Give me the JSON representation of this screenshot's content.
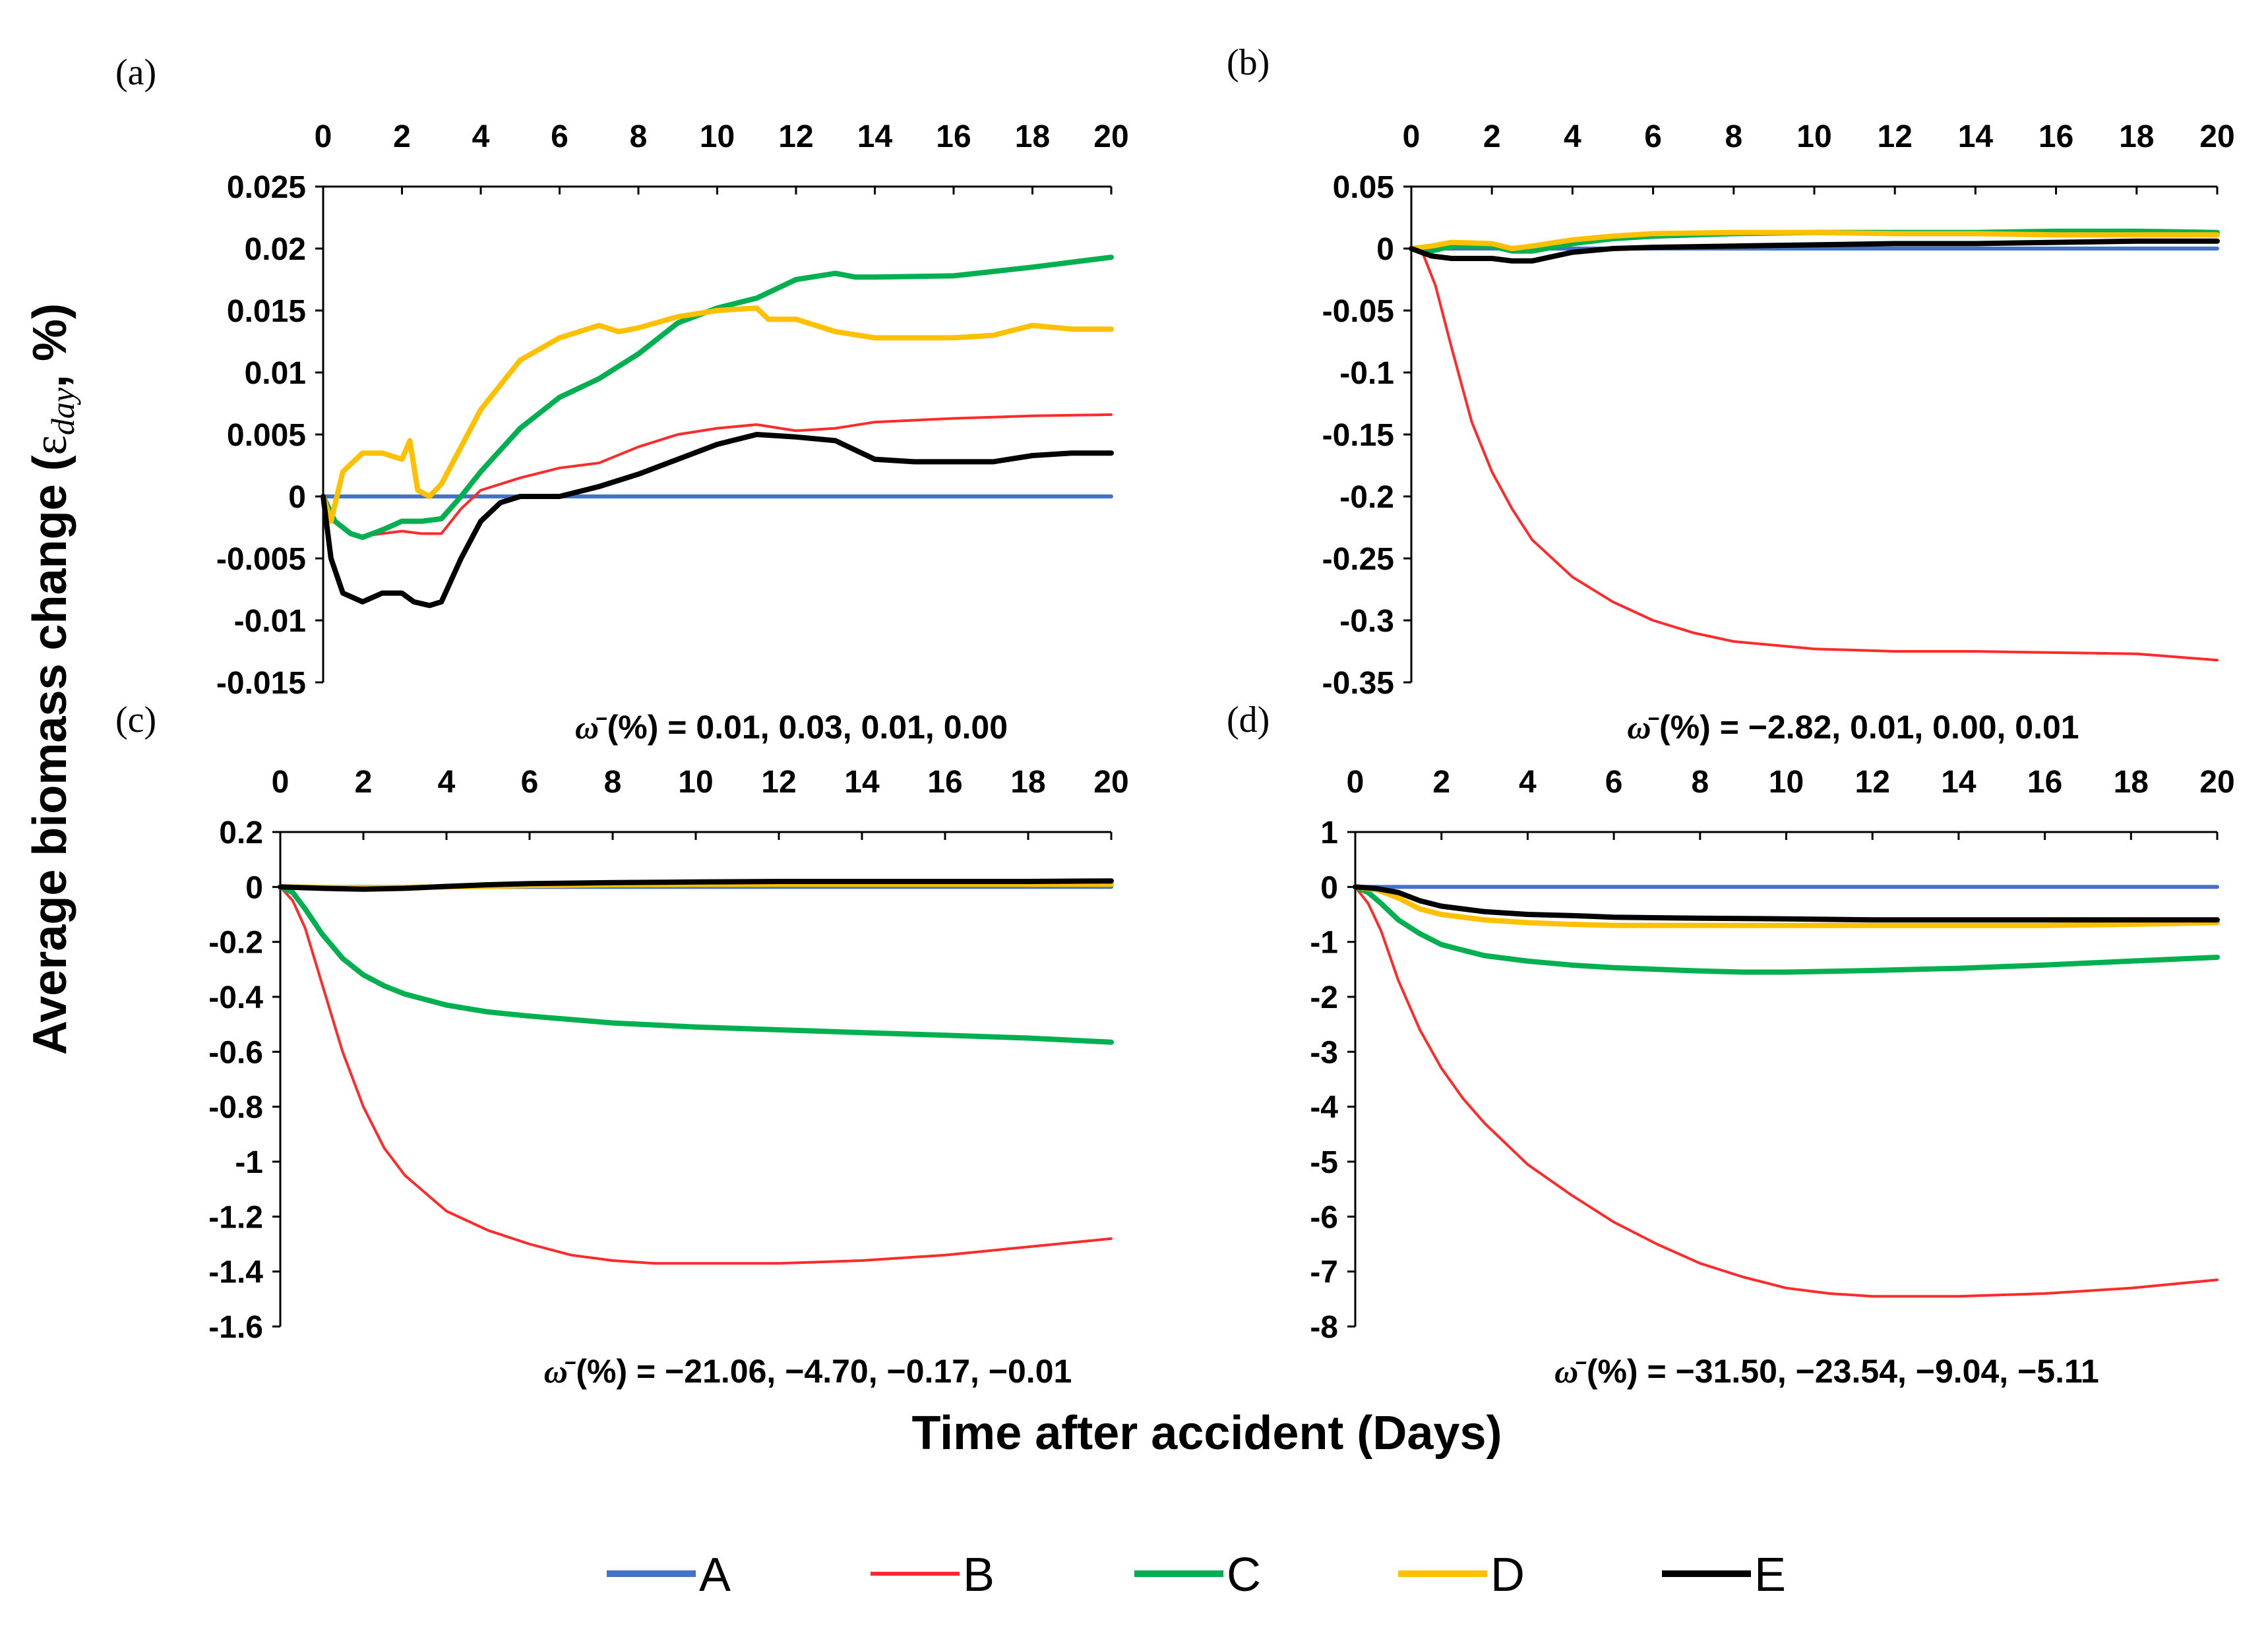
{
  "figure": {
    "ylabel_text": "Average biomass change (",
    "ylabel_symbol": "ε",
    "ylabel_sub": "day",
    "ylabel_suffix": ", %)",
    "xlabel": "Time after accident (Days)"
  },
  "legend": [
    {
      "name": "A",
      "color": "#4472c4"
    },
    {
      "name": "B",
      "color": "#ff2a2a"
    },
    {
      "name": "C",
      "color": "#00b050"
    },
    {
      "name": "D",
      "color": "#ffc000"
    },
    {
      "name": "E",
      "color": "#000000"
    }
  ],
  "chart_data": [
    {
      "type": "line",
      "panel_label": "(a)",
      "xlim": [
        0,
        20
      ],
      "xticks": [
        0,
        2,
        4,
        6,
        8,
        10,
        12,
        14,
        16,
        18,
        20
      ],
      "ylim": [
        -0.015,
        0.025
      ],
      "yticks": [
        -0.015,
        -0.01,
        -0.005,
        0,
        0.005,
        0.01,
        0.015,
        0.02,
        0.025
      ],
      "ytick_labels": [
        "-0.015",
        "-0.01",
        "-0.005",
        "0",
        "0.005",
        "0.01",
        "0.015",
        "0.02",
        "0.025"
      ],
      "annotation": "(%) = 0.01, 0.03, 0.01, 0.00",
      "series": [
        {
          "name": "A",
          "x": [
            0,
            20
          ],
          "y": [
            0,
            0
          ]
        },
        {
          "name": "B",
          "x": [
            0,
            0.3,
            0.7,
            1.0,
            1.5,
            2.0,
            2.5,
            3.0,
            3.5,
            4.0,
            5.0,
            6.0,
            7.0,
            8.0,
            9.0,
            10.0,
            11.0,
            12.0,
            13.0,
            14.0,
            16.0,
            18.0,
            20.0
          ],
          "y": [
            0,
            -0.002,
            -0.003,
            -0.0032,
            -0.003,
            -0.0028,
            -0.003,
            -0.003,
            -0.001,
            0.0005,
            0.0015,
            0.0023,
            0.0027,
            0.004,
            0.005,
            0.0055,
            0.0058,
            0.0053,
            0.0055,
            0.006,
            0.0063,
            0.0065,
            0.0066
          ]
        },
        {
          "name": "C",
          "x": [
            0,
            0.3,
            0.7,
            1.0,
            1.5,
            2.0,
            2.5,
            3.0,
            3.5,
            4.0,
            5.0,
            6.0,
            7.0,
            8.0,
            9.0,
            10.0,
            11.0,
            12.0,
            13.0,
            13.5,
            14.0,
            16.0,
            18.0,
            20.0
          ],
          "y": [
            0,
            -0.002,
            -0.003,
            -0.0033,
            -0.0027,
            -0.002,
            -0.002,
            -0.0018,
            0,
            0.002,
            0.0055,
            0.008,
            0.0095,
            0.0115,
            0.014,
            0.0152,
            0.016,
            0.0175,
            0.018,
            0.0177,
            0.0177,
            0.0178,
            0.0185,
            0.0193
          ]
        },
        {
          "name": "D",
          "x": [
            0,
            0.2,
            0.5,
            1.0,
            1.5,
            2.0,
            2.2,
            2.4,
            2.7,
            3.0,
            4.0,
            5.0,
            6.0,
            7.0,
            7.5,
            8.0,
            9.0,
            10.0,
            11.0,
            11.3,
            12.0,
            13.0,
            14.0,
            15.0,
            16.0,
            17.0,
            18.0,
            19.0,
            20.0
          ],
          "y": [
            0,
            -0.002,
            0.002,
            0.0035,
            0.0035,
            0.003,
            0.0045,
            0.0005,
            0,
            0.001,
            0.007,
            0.011,
            0.0128,
            0.0138,
            0.0133,
            0.0136,
            0.0145,
            0.015,
            0.0152,
            0.0143,
            0.0143,
            0.0133,
            0.0128,
            0.0128,
            0.0128,
            0.013,
            0.0138,
            0.0135,
            0.0135
          ]
        },
        {
          "name": "E",
          "x": [
            0,
            0.2,
            0.5,
            1.0,
            1.5,
            2.0,
            2.3,
            2.7,
            3.0,
            3.5,
            4.0,
            4.5,
            5.0,
            6.0,
            7.0,
            8.0,
            9.0,
            10.0,
            11.0,
            12.0,
            13.0,
            14.0,
            15.0,
            16.0,
            17.0,
            18.0,
            19.0,
            20.0
          ],
          "y": [
            0,
            -0.005,
            -0.0078,
            -0.0085,
            -0.0078,
            -0.0078,
            -0.0085,
            -0.0088,
            -0.0085,
            -0.005,
            -0.002,
            -0.0005,
            0,
            0,
            0.0008,
            0.0018,
            0.003,
            0.0042,
            0.005,
            0.0048,
            0.0045,
            0.003,
            0.0028,
            0.0028,
            0.0028,
            0.0033,
            0.0035,
            0.0035
          ]
        }
      ]
    },
    {
      "type": "line",
      "panel_label": "(b)",
      "xlim": [
        0,
        20
      ],
      "xticks": [
        0,
        2,
        4,
        6,
        8,
        10,
        12,
        14,
        16,
        18,
        20
      ],
      "ylim": [
        -0.35,
        0.05
      ],
      "yticks": [
        -0.35,
        -0.3,
        -0.25,
        -0.2,
        -0.15,
        -0.1,
        -0.05,
        0,
        0.05
      ],
      "ytick_labels": [
        "-0.35",
        "-0.3",
        "-0.25",
        "-0.2",
        "-0.15",
        "-0.1",
        "-0.05",
        "0",
        "0.05"
      ],
      "annotation": "(%) = −2.82, 0.01, 0.00, 0.01",
      "series": [
        {
          "name": "A",
          "x": [
            0,
            20
          ],
          "y": [
            0,
            0
          ]
        },
        {
          "name": "B",
          "x": [
            0,
            0.3,
            0.6,
            1.0,
            1.5,
            2.0,
            2.5,
            3.0,
            4.0,
            5.0,
            6.0,
            7.0,
            8.0,
            10.0,
            12.0,
            14.0,
            16.0,
            18.0,
            20.0
          ],
          "y": [
            0,
            -0.005,
            -0.03,
            -0.08,
            -0.14,
            -0.18,
            -0.21,
            -0.235,
            -0.265,
            -0.285,
            -0.3,
            -0.31,
            -0.317,
            -0.323,
            -0.325,
            -0.325,
            -0.326,
            -0.327,
            -0.332
          ]
        },
        {
          "name": "C",
          "x": [
            0,
            0.5,
            1.0,
            2.0,
            2.5,
            3.0,
            4.0,
            5.0,
            6.0,
            8.0,
            10.0,
            12.0,
            14.0,
            16.0,
            18.0,
            20.0
          ],
          "y": [
            0,
            -0.002,
            0.002,
            0.002,
            -0.002,
            -0.002,
            0.004,
            0.008,
            0.01,
            0.012,
            0.013,
            0.013,
            0.013,
            0.014,
            0.014,
            0.013
          ]
        },
        {
          "name": "D",
          "x": [
            0,
            0.5,
            1.0,
            2.0,
            2.5,
            3.0,
            4.0,
            5.0,
            6.0,
            8.0,
            10.0,
            12.0,
            14.0,
            16.0,
            18.0,
            20.0
          ],
          "y": [
            0,
            0.002,
            0.005,
            0.004,
            0,
            0.002,
            0.007,
            0.01,
            0.012,
            0.013,
            0.013,
            0.012,
            0.012,
            0.011,
            0.011,
            0.011
          ]
        },
        {
          "name": "E",
          "x": [
            0,
            0.5,
            1.0,
            2.0,
            2.5,
            3.0,
            4.0,
            5.0,
            6.0,
            8.0,
            10.0,
            12.0,
            14.0,
            16.0,
            18.0,
            20.0
          ],
          "y": [
            0,
            -0.006,
            -0.008,
            -0.008,
            -0.01,
            -0.01,
            -0.003,
            0,
            0.001,
            0.002,
            0.003,
            0.004,
            0.004,
            0.005,
            0.006,
            0.006
          ]
        }
      ]
    },
    {
      "type": "line",
      "panel_label": "(c)",
      "xlim": [
        0,
        20
      ],
      "xticks": [
        0,
        2,
        4,
        6,
        8,
        10,
        12,
        14,
        16,
        18,
        20
      ],
      "ylim": [
        -1.6,
        0.2
      ],
      "yticks": [
        -1.6,
        -1.4,
        -1.2,
        -1.0,
        -0.8,
        -0.6,
        -0.4,
        -0.2,
        0,
        0.2
      ],
      "ytick_labels": [
        "-1.6",
        "-1.4",
        "-1.2",
        "-1",
        "-0.8",
        "-0.6",
        "-0.4",
        "-0.2",
        "0",
        "0.2"
      ],
      "annotation": "(%) = −21.06, −4.70, −0.17, −0.01",
      "series": [
        {
          "name": "A",
          "x": [
            0,
            20
          ],
          "y": [
            0,
            0
          ]
        },
        {
          "name": "B",
          "x": [
            0,
            0.3,
            0.6,
            1.0,
            1.5,
            2.0,
            2.5,
            3.0,
            4.0,
            5.0,
            6.0,
            7.0,
            8.0,
            9.0,
            10.0,
            12.0,
            14.0,
            16.0,
            18.0,
            20.0
          ],
          "y": [
            0,
            -0.05,
            -0.15,
            -0.35,
            -0.6,
            -0.8,
            -0.95,
            -1.05,
            -1.18,
            -1.25,
            -1.3,
            -1.34,
            -1.36,
            -1.37,
            -1.37,
            -1.37,
            -1.36,
            -1.34,
            -1.31,
            -1.28
          ]
        },
        {
          "name": "C",
          "x": [
            0,
            0.3,
            0.6,
            1.0,
            1.5,
            2.0,
            2.5,
            3.0,
            4.0,
            5.0,
            6.0,
            8.0,
            10.0,
            12.0,
            14.0,
            16.0,
            18.0,
            20.0
          ],
          "y": [
            0,
            -0.02,
            -0.08,
            -0.17,
            -0.26,
            -0.32,
            -0.36,
            -0.39,
            -0.43,
            -0.455,
            -0.47,
            -0.495,
            -0.51,
            -0.52,
            -0.53,
            -0.54,
            -0.55,
            -0.565
          ]
        },
        {
          "name": "D",
          "x": [
            0,
            2.0,
            4.0,
            6.0,
            8.0,
            10.0,
            12.0,
            14.0,
            16.0,
            18.0,
            20.0
          ],
          "y": [
            0,
            -0.003,
            0,
            0.005,
            0.008,
            0.009,
            0.01,
            0.01,
            0.01,
            0.01,
            0.01
          ]
        },
        {
          "name": "E",
          "x": [
            0,
            1.0,
            2.0,
            3.0,
            4.0,
            5.0,
            6.0,
            8.0,
            10.0,
            12.0,
            14.0,
            16.0,
            18.0,
            20.0
          ],
          "y": [
            0,
            -0.005,
            -0.008,
            -0.005,
            0.002,
            0.008,
            0.012,
            0.016,
            0.018,
            0.02,
            0.02,
            0.02,
            0.02,
            0.022
          ]
        }
      ]
    },
    {
      "type": "line",
      "panel_label": "(d)",
      "xlim": [
        0,
        20
      ],
      "xticks": [
        0,
        2,
        4,
        6,
        8,
        10,
        12,
        14,
        16,
        18,
        20
      ],
      "ylim": [
        -8,
        1
      ],
      "yticks": [
        -8,
        -7,
        -6,
        -5,
        -4,
        -3,
        -2,
        -1,
        0,
        1
      ],
      "ytick_labels": [
        "-8",
        "-7",
        "-6",
        "-5",
        "-4",
        "-3",
        "-2",
        "-1",
        "0",
        "1"
      ],
      "annotation": "(%) = −31.50, −23.54, −9.04, −5.11",
      "series": [
        {
          "name": "A",
          "x": [
            0,
            20
          ],
          "y": [
            0,
            0
          ]
        },
        {
          "name": "B",
          "x": [
            0,
            0.3,
            0.6,
            1.0,
            1.5,
            2.0,
            2.5,
            3.0,
            4.0,
            5.0,
            6.0,
            7.0,
            8.0,
            9.0,
            10.0,
            11.0,
            12.0,
            13.0,
            14.0,
            16.0,
            18.0,
            20.0
          ],
          "y": [
            0,
            -0.3,
            -0.8,
            -1.7,
            -2.6,
            -3.3,
            -3.85,
            -4.3,
            -5.05,
            -5.6,
            -6.1,
            -6.5,
            -6.85,
            -7.1,
            -7.3,
            -7.4,
            -7.45,
            -7.45,
            -7.45,
            -7.4,
            -7.3,
            -7.15
          ]
        },
        {
          "name": "C",
          "x": [
            0,
            0.3,
            0.6,
            1.0,
            1.5,
            2.0,
            2.5,
            3.0,
            4.0,
            5.0,
            6.0,
            7.0,
            8.0,
            9.0,
            10.0,
            12.0,
            14.0,
            16.0,
            18.0,
            20.0
          ],
          "y": [
            0,
            -0.1,
            -0.3,
            -0.6,
            -0.85,
            -1.05,
            -1.15,
            -1.25,
            -1.35,
            -1.42,
            -1.47,
            -1.5,
            -1.53,
            -1.55,
            -1.55,
            -1.52,
            -1.48,
            -1.42,
            -1.35,
            -1.28
          ]
        },
        {
          "name": "D",
          "x": [
            0,
            0.5,
            1.0,
            1.5,
            2.0,
            3.0,
            4.0,
            5.0,
            6.0,
            8.0,
            10.0,
            12.0,
            14.0,
            16.0,
            18.0,
            20.0
          ],
          "y": [
            0,
            -0.05,
            -0.2,
            -0.4,
            -0.5,
            -0.6,
            -0.65,
            -0.68,
            -0.7,
            -0.7,
            -0.7,
            -0.7,
            -0.7,
            -0.7,
            -0.68,
            -0.65
          ]
        },
        {
          "name": "E",
          "x": [
            0,
            0.5,
            1.0,
            1.5,
            2.0,
            3.0,
            4.0,
            5.0,
            6.0,
            8.0,
            10.0,
            12.0,
            14.0,
            16.0,
            18.0,
            20.0
          ],
          "y": [
            0,
            -0.03,
            -0.1,
            -0.25,
            -0.35,
            -0.45,
            -0.5,
            -0.52,
            -0.55,
            -0.57,
            -0.58,
            -0.6,
            -0.6,
            -0.6,
            -0.6,
            -0.6
          ]
        }
      ]
    }
  ]
}
